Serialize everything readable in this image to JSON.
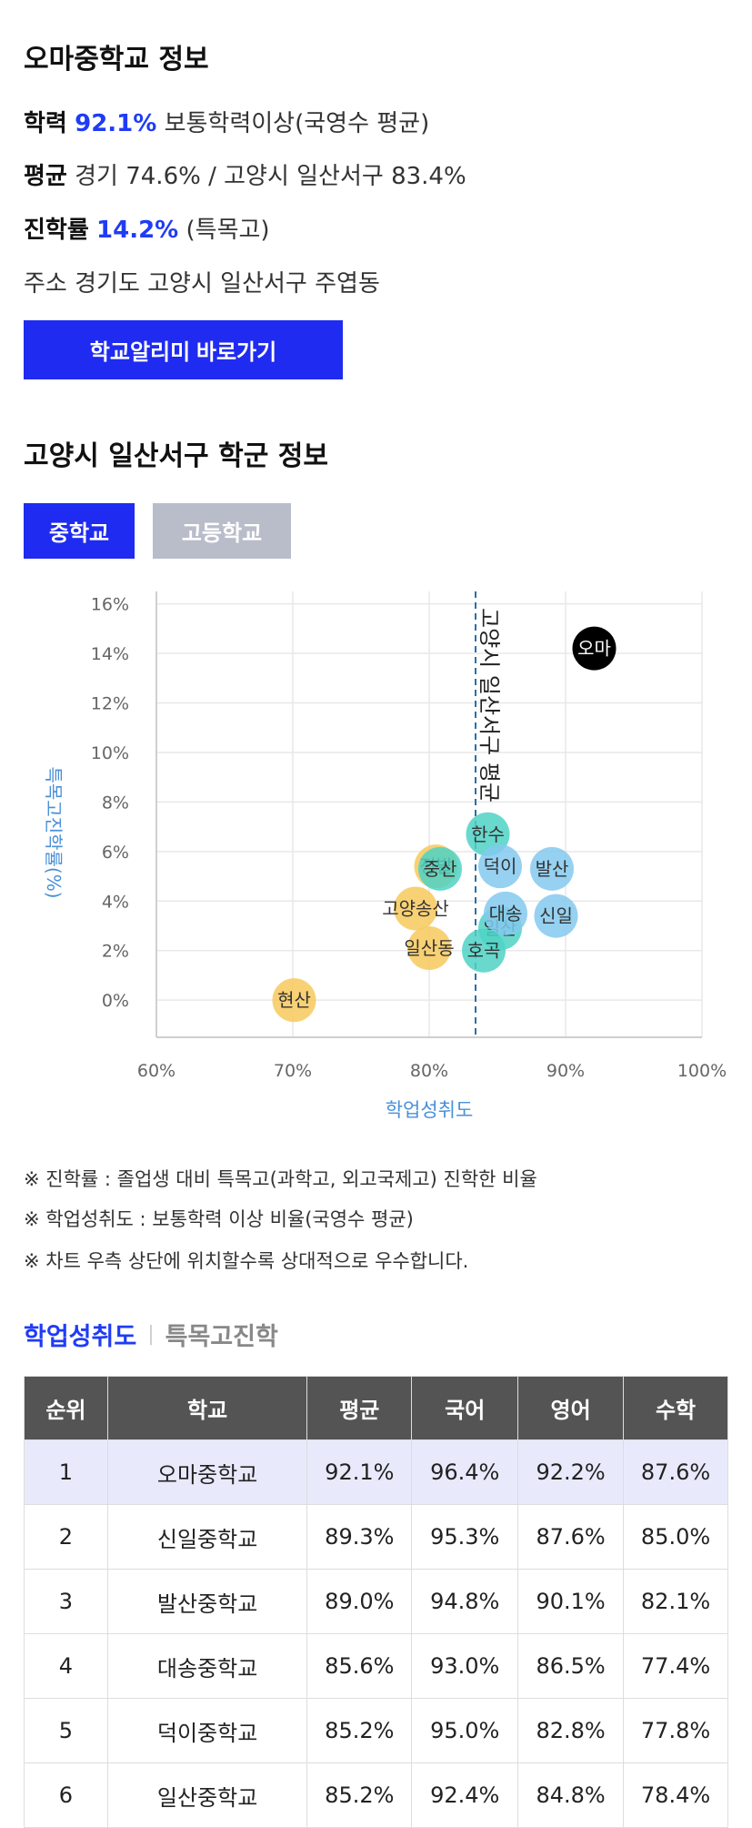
{
  "school": {
    "title": "오마중학교 정보",
    "achievement": {
      "label": "학력",
      "value": "92.1%",
      "desc": "보통학력이상(국영수 평균)"
    },
    "average": {
      "label": "평균",
      "value": "경기 74.6% / 고양시 일산서구 83.4%"
    },
    "advance": {
      "label": "진학률",
      "value": "14.2%",
      "desc": "(특목고)"
    },
    "address": {
      "label": "주소",
      "value": "경기도 고양시 일산서구 주엽동"
    },
    "button_label": "학교알리미 바로가기"
  },
  "district": {
    "title": "고양시 일산서구 학군 정보",
    "tabs": [
      "중학교",
      "고등학교"
    ]
  },
  "colors": {
    "accent": "#1f2bf0",
    "highlight": "#1f3cf5",
    "bubble_yellow": "#f7c95c",
    "bubble_teal": "#4fd2c6",
    "bubble_blue": "#84c9ef",
    "bubble_black": "#000000",
    "axis_label": "#4a90d9"
  },
  "chart_data": {
    "type": "scatter",
    "xlabel": "학업성취도",
    "ylabel": "특목고진학률(%)",
    "xlim": [
      60,
      100
    ],
    "ylim": [
      -1.5,
      16.5
    ],
    "x_ticks": [
      "60%",
      "70%",
      "80%",
      "90%",
      "100%"
    ],
    "y_ticks": [
      "16%",
      "14%",
      "12%",
      "10%",
      "8%",
      "6%",
      "4%",
      "2%",
      "0%"
    ],
    "reference_line": {
      "x": 83.4,
      "label": "고양시 일산서구 평균"
    },
    "points": [
      {
        "name": "현산",
        "x": 70.1,
        "y": 0.0,
        "color": "yellow"
      },
      {
        "name": "고양송산",
        "x": 79.0,
        "y": 3.7,
        "color": "yellow"
      },
      {
        "name": "일산동",
        "x": 80.0,
        "y": 2.1,
        "color": "yellow"
      },
      {
        "name": "정발",
        "x": 80.5,
        "y": 5.4,
        "color": "yellow"
      },
      {
        "name": "중산",
        "x": 80.8,
        "y": 5.3,
        "color": "teal"
      },
      {
        "name": "한수",
        "x": 84.3,
        "y": 6.7,
        "color": "teal"
      },
      {
        "name": "덕이",
        "x": 85.2,
        "y": 5.4,
        "color": "blue"
      },
      {
        "name": "일산",
        "x": 85.2,
        "y": 2.9,
        "color": "teal"
      },
      {
        "name": "대송",
        "x": 85.6,
        "y": 3.5,
        "color": "blue"
      },
      {
        "name": "호곡",
        "x": 84.0,
        "y": 2.0,
        "color": "teal"
      },
      {
        "name": "발산",
        "x": 89.0,
        "y": 5.3,
        "color": "blue"
      },
      {
        "name": "신일",
        "x": 89.3,
        "y": 3.4,
        "color": "blue"
      },
      {
        "name": "오마",
        "x": 92.1,
        "y": 14.2,
        "color": "black"
      }
    ]
  },
  "notes": [
    "※ 진학률 : 졸업생 대비 특목고(과학고, 외고국제고) 진학한 비율",
    "※ 학업성취도 : 보통학력 이상 비율(국영수 평균)",
    "※ 차트 우측 상단에 위치할수록 상대적으로 우수합니다."
  ],
  "subtabs": [
    "학업성취도",
    "특목고진학"
  ],
  "table": {
    "headers": [
      "순위",
      "학교",
      "평균",
      "국어",
      "영어",
      "수학"
    ],
    "rows": [
      [
        "1",
        "오마중학교",
        "92.1%",
        "96.4%",
        "92.2%",
        "87.6%"
      ],
      [
        "2",
        "신일중학교",
        "89.3%",
        "95.3%",
        "87.6%",
        "85.0%"
      ],
      [
        "3",
        "발산중학교",
        "89.0%",
        "94.8%",
        "90.1%",
        "82.1%"
      ],
      [
        "4",
        "대송중학교",
        "85.6%",
        "93.0%",
        "86.5%",
        "77.4%"
      ],
      [
        "5",
        "덕이중학교",
        "85.2%",
        "95.0%",
        "82.8%",
        "77.8%"
      ],
      [
        "6",
        "일산중학교",
        "85.2%",
        "92.4%",
        "84.8%",
        "78.4%"
      ]
    ]
  }
}
